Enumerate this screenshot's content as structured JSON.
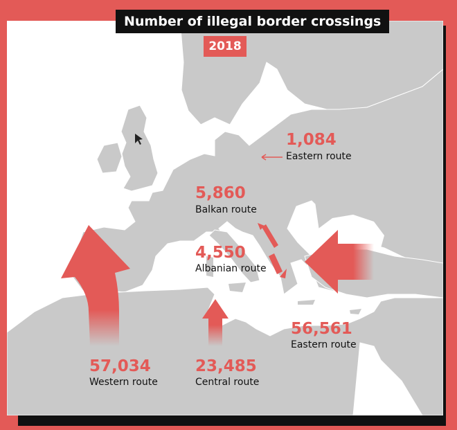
{
  "header": {
    "title": "Number of illegal border crossings",
    "year": "2018"
  },
  "colors": {
    "accent": "#e35a57",
    "land": "#c9c9c9",
    "sea": "#ffffff",
    "frame_shadow": "#111111"
  },
  "routes": {
    "eastern_land": {
      "value": "1,084",
      "label": "Eastern route"
    },
    "balkan": {
      "value": "5,860",
      "label": "Balkan route"
    },
    "albanian": {
      "value": "4,550",
      "label": "Albanian route"
    },
    "eastern_med": {
      "value": "56,561",
      "label": "Eastern route"
    },
    "western": {
      "value": "57,034",
      "label": "Western route"
    },
    "central": {
      "value": "23,485",
      "label": "Central route"
    }
  }
}
